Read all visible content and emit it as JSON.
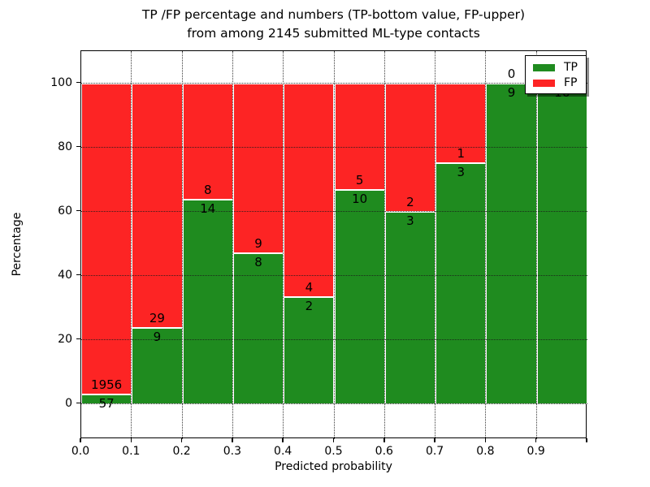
{
  "chart_data": {
    "type": "bar",
    "stacked": true,
    "normalized_to_percent": true,
    "title": "TP /FP percentage and numbers (TP-bottom value, FP-upper)",
    "subtitle": "from among 2145 submitted ML-type contacts",
    "xlabel": "Predicted probability",
    "ylabel": "Percentage",
    "categories": [
      "0.0-0.1",
      "0.1-0.2",
      "0.2-0.3",
      "0.3-0.4",
      "0.4-0.5",
      "0.5-0.6",
      "0.6-0.7",
      "0.7-0.8",
      "0.8-0.9",
      "0.9-1.0"
    ],
    "series": [
      {
        "name": "TP",
        "color": "#1f8b1f",
        "values": [
          57,
          9,
          14,
          8,
          2,
          10,
          3,
          3,
          9,
          16
        ]
      },
      {
        "name": "FP",
        "color": "#fd2424",
        "values": [
          1956,
          29,
          8,
          9,
          4,
          5,
          2,
          1,
          0,
          0
        ]
      }
    ],
    "bar_label_note": "TP count printed below segment boundary, FP count above it",
    "x_tick_labels": [
      "0.0",
      "0.1",
      "0.2",
      "0.3",
      "0.4",
      "0.5",
      "0.6",
      "0.7",
      "0.8",
      "0.9"
    ],
    "y_ticks": [
      0,
      20,
      40,
      60,
      80,
      100
    ],
    "y_tick_labels": [
      "0",
      "20",
      "40",
      "60",
      "80",
      "100"
    ],
    "xlim": [
      0.0,
      1.0
    ],
    "ylim": [
      -11,
      110
    ],
    "grid": true,
    "legend": {
      "position": "upper right",
      "entries": [
        {
          "label": "TP",
          "color": "#1f8b1f"
        },
        {
          "label": "FP",
          "color": "#fd2424"
        }
      ]
    }
  }
}
